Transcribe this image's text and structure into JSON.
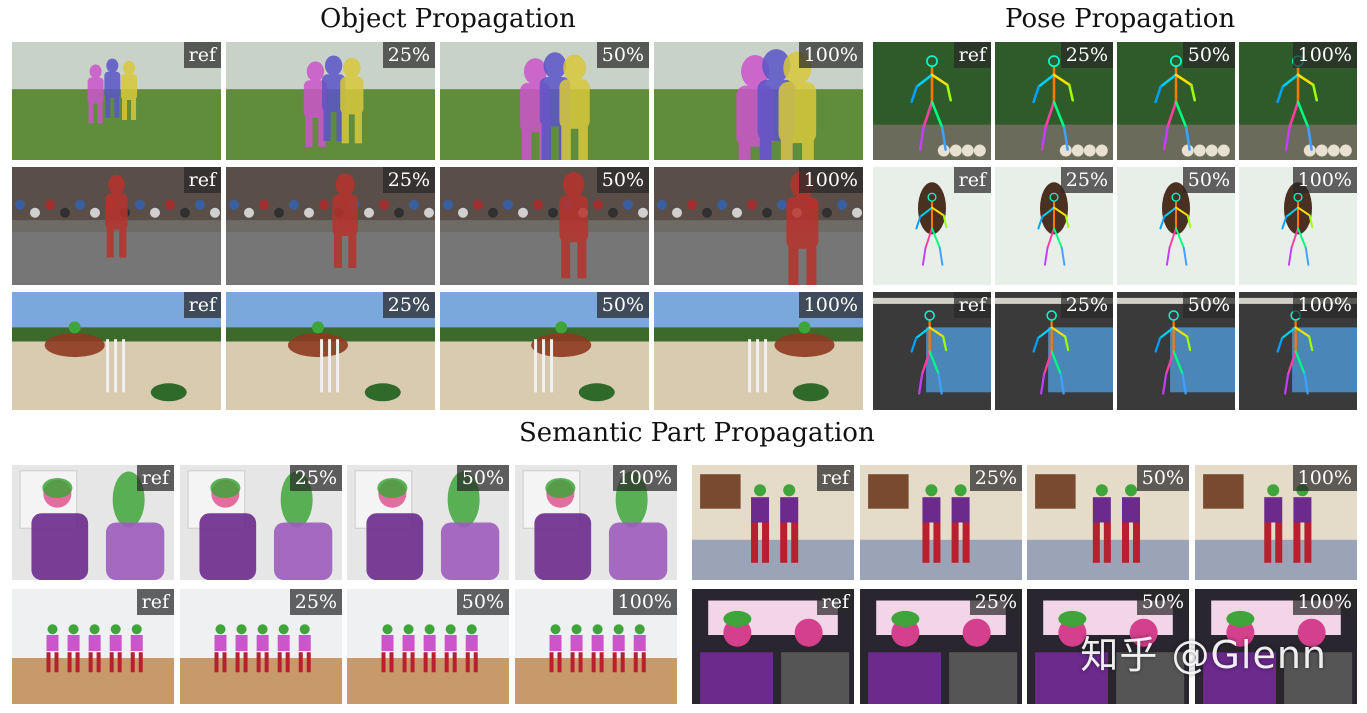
{
  "titles": {
    "object": "Object Propagation",
    "pose": "Pose Propagation",
    "semantic": "Semantic Part Propagation"
  },
  "labels": [
    "ref",
    "25%",
    "50%",
    "100%"
  ],
  "rows": {
    "object": [
      "field-walkers",
      "crowd-dancer",
      "horse-jump"
    ],
    "pose": [
      "golfer",
      "hair-girl",
      "climber"
    ],
    "semantic_left": [
      "interview",
      "dance-studio"
    ],
    "semantic_right": [
      "hall-dancers",
      "car-interior"
    ]
  },
  "watermark": "知乎 @Glenn",
  "colors": {
    "grass": "#5f8d3c",
    "sky": "#7aa7dc",
    "sand": "#d9cbb0",
    "mask_red": "#b8322c",
    "mask_purple": "#6b2a8c",
    "mask_green": "#3fa53a",
    "mask_magenta": "#cc55cc",
    "mask_yellow": "#d8c83c",
    "mask_blue": "#5a55c8"
  }
}
